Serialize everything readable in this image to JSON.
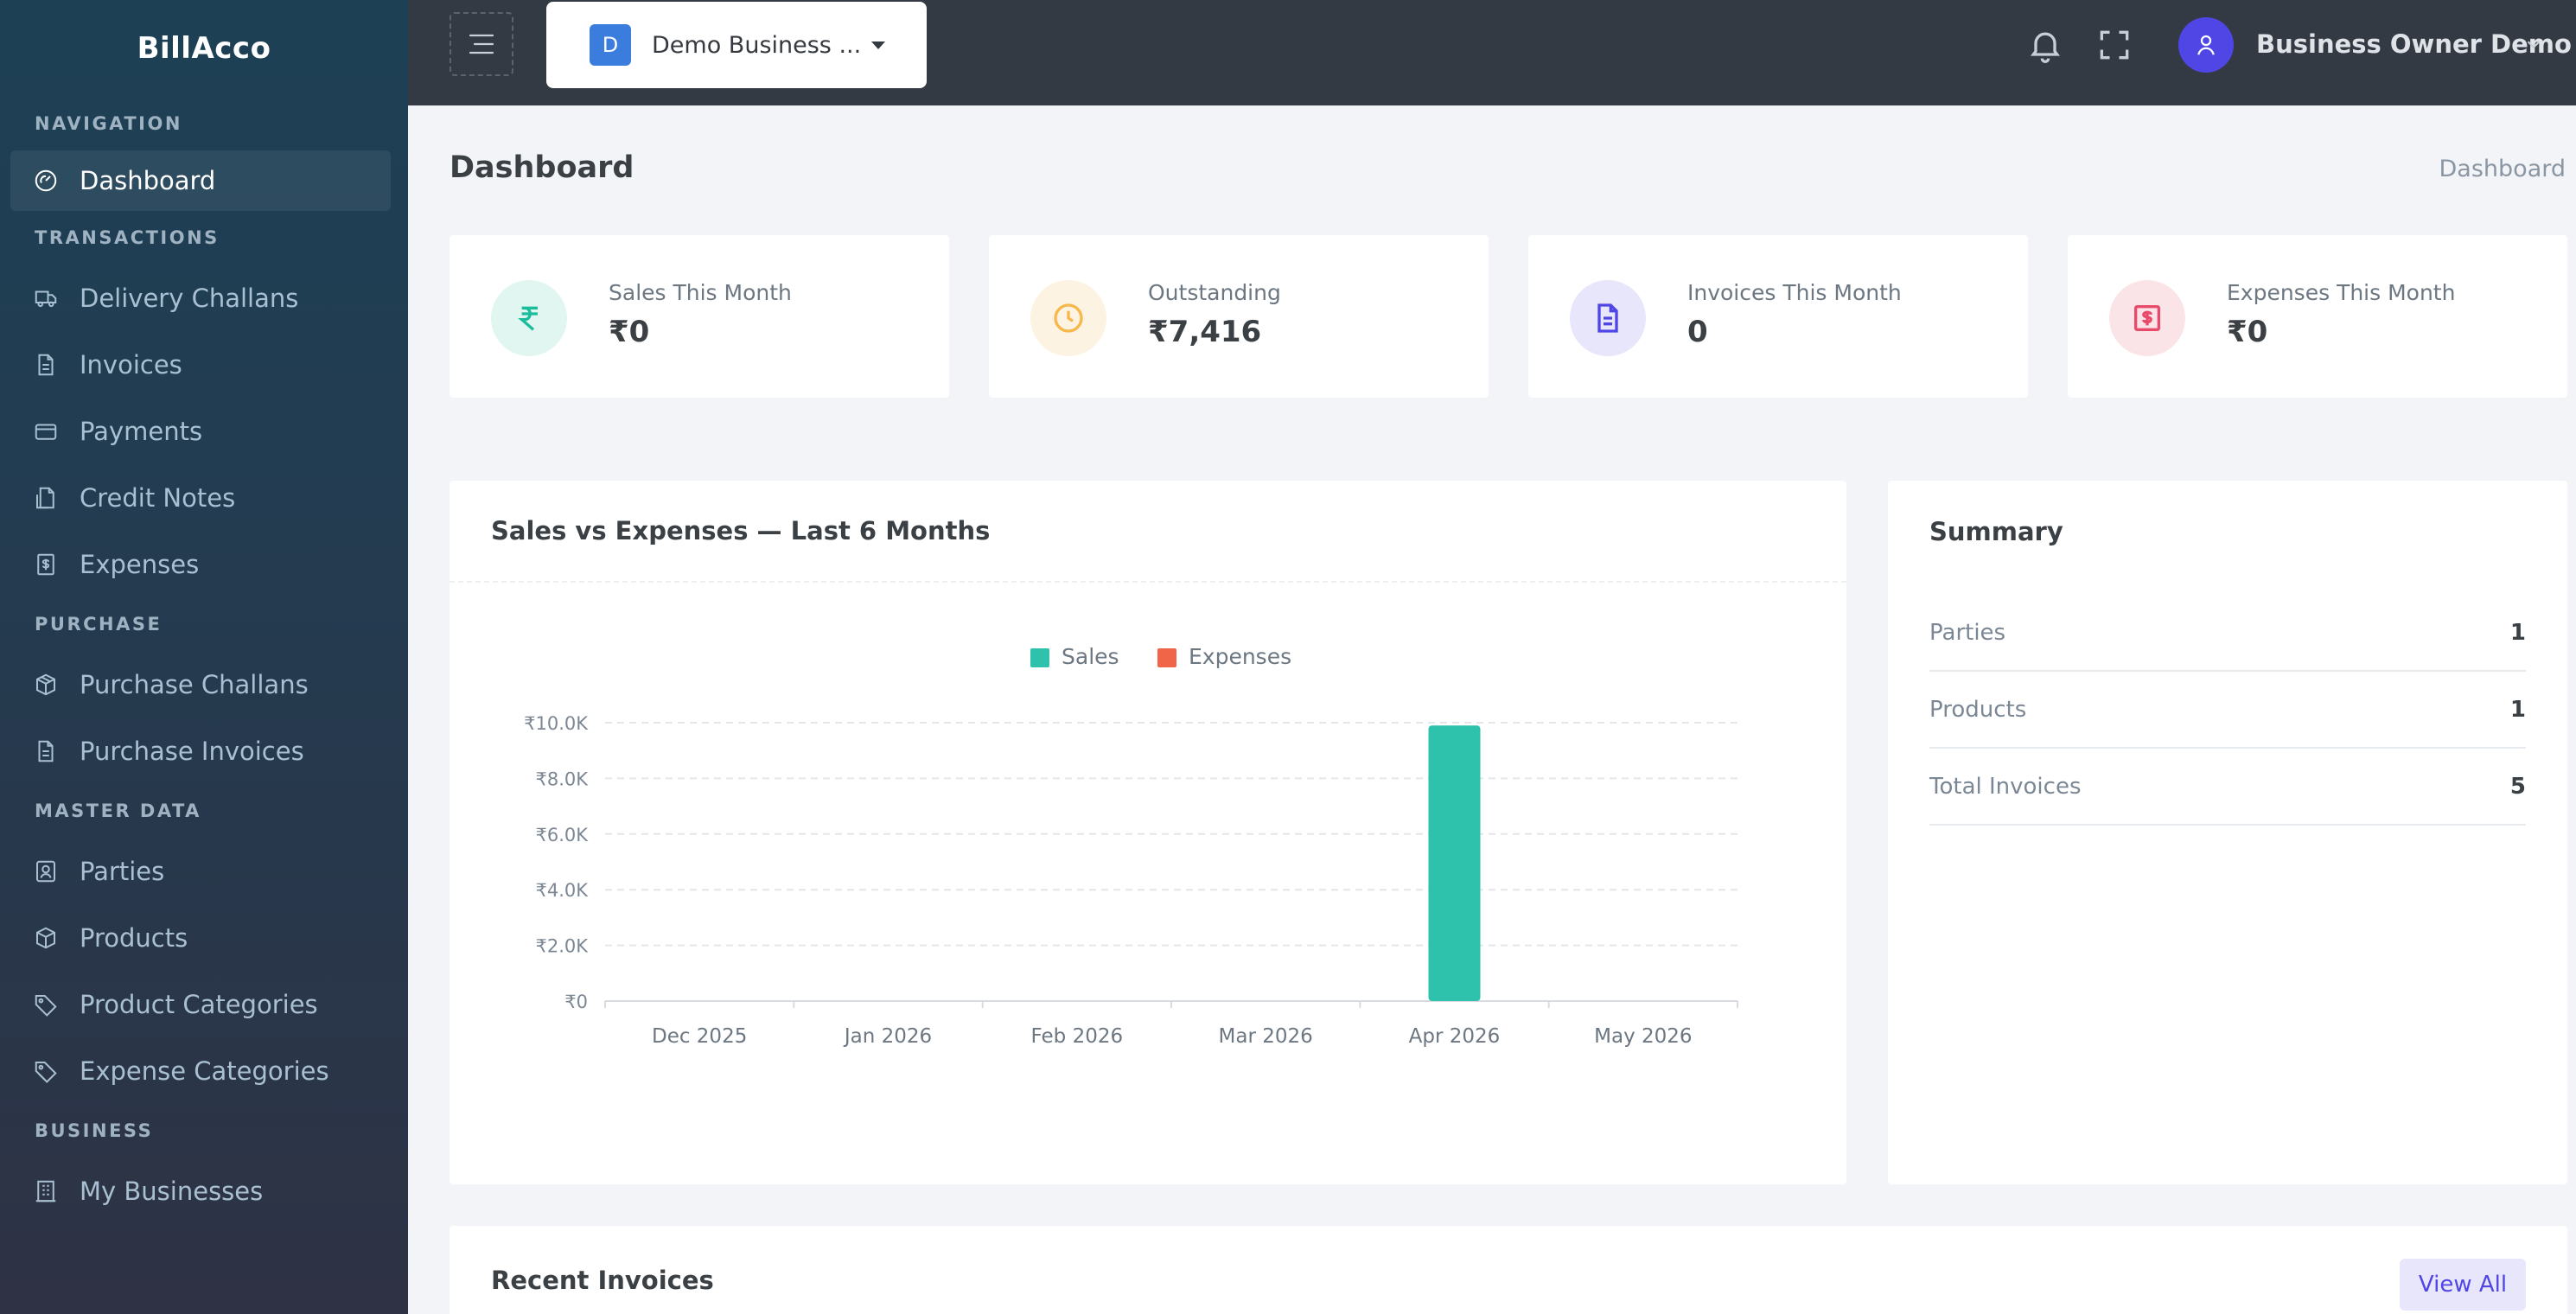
{
  "brand": "BillAcco",
  "nav": [
    {
      "type": "section",
      "label": "NAVIGATION"
    },
    {
      "type": "item",
      "label": "Dashboard",
      "icon": "gauge-icon",
      "active": true
    },
    {
      "type": "section",
      "label": "TRANSACTIONS"
    },
    {
      "type": "item",
      "label": "Delivery Challans",
      "icon": "truck-icon"
    },
    {
      "type": "item",
      "label": "Invoices",
      "icon": "file-icon"
    },
    {
      "type": "item",
      "label": "Payments",
      "icon": "card-icon"
    },
    {
      "type": "item",
      "label": "Credit Notes",
      "icon": "note-icon"
    },
    {
      "type": "item",
      "label": "Expenses",
      "icon": "receipt-icon"
    },
    {
      "type": "section",
      "label": "PURCHASE"
    },
    {
      "type": "item",
      "label": "Purchase Challans",
      "icon": "boxes-icon"
    },
    {
      "type": "item",
      "label": "Purchase Invoices",
      "icon": "file-icon"
    },
    {
      "type": "section",
      "label": "MASTER DATA"
    },
    {
      "type": "item",
      "label": "Parties",
      "icon": "contact-icon"
    },
    {
      "type": "item",
      "label": "Products",
      "icon": "box-icon"
    },
    {
      "type": "item",
      "label": "Product Categories",
      "icon": "tag-icon"
    },
    {
      "type": "item",
      "label": "Expense Categories",
      "icon": "tags-icon"
    },
    {
      "type": "section",
      "label": "BUSINESS"
    },
    {
      "type": "item",
      "label": "My Businesses",
      "icon": "building-icon"
    }
  ],
  "topbar": {
    "business_badge": "D",
    "business_name": "Demo Business ...",
    "user_name": "Business Owner Demo"
  },
  "page": {
    "title": "Dashboard",
    "breadcrumb": "Dashboard"
  },
  "stats": [
    {
      "label": "Sales This Month",
      "value": "₹0",
      "icon": "rupee-icon",
      "color": "#1abc9c",
      "bg": "#e1f6f1"
    },
    {
      "label": "Outstanding",
      "value": "₹7,416",
      "icon": "clock-icon",
      "color": "#f7b84b",
      "bg": "#fdf3e2"
    },
    {
      "label": "Invoices This Month",
      "value": "0",
      "icon": "document-icon",
      "color": "#4f46e5",
      "bg": "#e7e6fb"
    },
    {
      "label": "Expenses This Month",
      "value": "₹0",
      "icon": "bill-icon",
      "color": "#e84a6b",
      "bg": "#fbe4e8"
    }
  ],
  "chart_card": {
    "title": "Sales vs Expenses — Last 6 Months"
  },
  "chart_data": {
    "type": "bar",
    "categories": [
      "Dec 2025",
      "Jan 2026",
      "Feb 2026",
      "Mar 2026",
      "Apr 2026",
      "May 2026"
    ],
    "series": [
      {
        "name": "Sales",
        "color": "#2ec1ac",
        "values": [
          0,
          0,
          0,
          0,
          9900,
          0
        ]
      },
      {
        "name": "Expenses",
        "color": "#f06548",
        "values": [
          0,
          0,
          0,
          0,
          0,
          0
        ]
      }
    ],
    "ylim": [
      0,
      10000
    ],
    "yticks": [
      0,
      2000,
      4000,
      6000,
      8000,
      10000
    ],
    "ytick_labels": [
      "₹0",
      "₹2.0K",
      "₹4.0K",
      "₹6.0K",
      "₹8.0K",
      "₹10.0K"
    ],
    "legend": "top-center",
    "grid": true
  },
  "summary": {
    "title": "Summary",
    "rows": [
      {
        "label": "Parties",
        "value": "1"
      },
      {
        "label": "Products",
        "value": "1"
      },
      {
        "label": "Total Invoices",
        "value": "5"
      }
    ]
  },
  "recent": {
    "title": "Recent Invoices",
    "view_all": "View All"
  }
}
